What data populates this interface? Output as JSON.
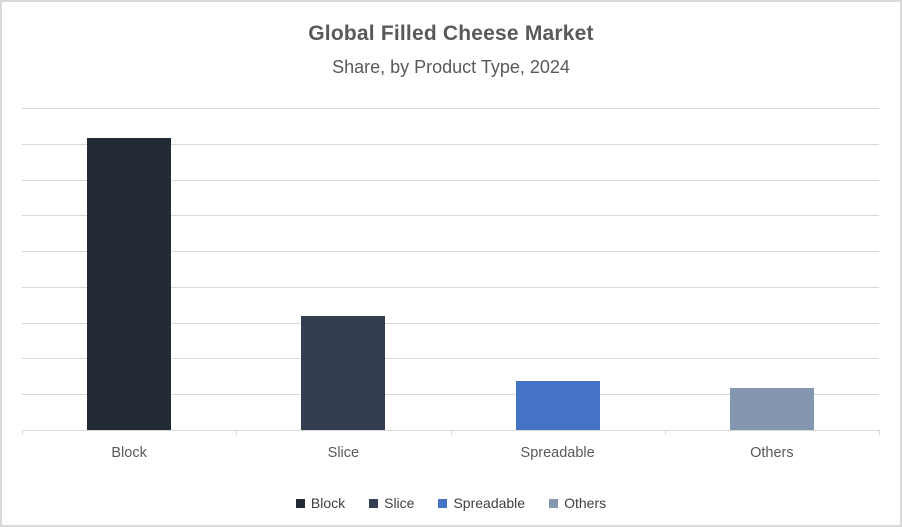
{
  "chart_data": {
    "type": "bar",
    "title": "Global Filled Cheese Market",
    "subtitle": "Share, by Product Type, 2024",
    "categories": [
      "Block",
      "Slice",
      "Spreadable",
      "Others"
    ],
    "values": [
      40.8,
      15.9,
      6.8,
      5.8
    ],
    "unit": "percent-share",
    "series_colors": [
      "#222A35",
      "#333F50",
      "#4472C4",
      "#8496B0"
    ],
    "ylim": [
      0,
      45
    ],
    "gridline_step": 5,
    "grid": true,
    "y_tick_labels_visible": false,
    "xlabel": "",
    "ylabel": "",
    "legend": {
      "position": "bottom",
      "entries": [
        "Block",
        "Slice",
        "Spreadable",
        "Others"
      ]
    }
  },
  "style_colors": {
    "gridline": "#d9d9d9",
    "axis": "#d9d9d9",
    "title_text": "#595959",
    "axis_label_text": "#595959",
    "legend_text": "#404040",
    "frame_border": "#d9d9d9",
    "background": "#ffffff"
  }
}
